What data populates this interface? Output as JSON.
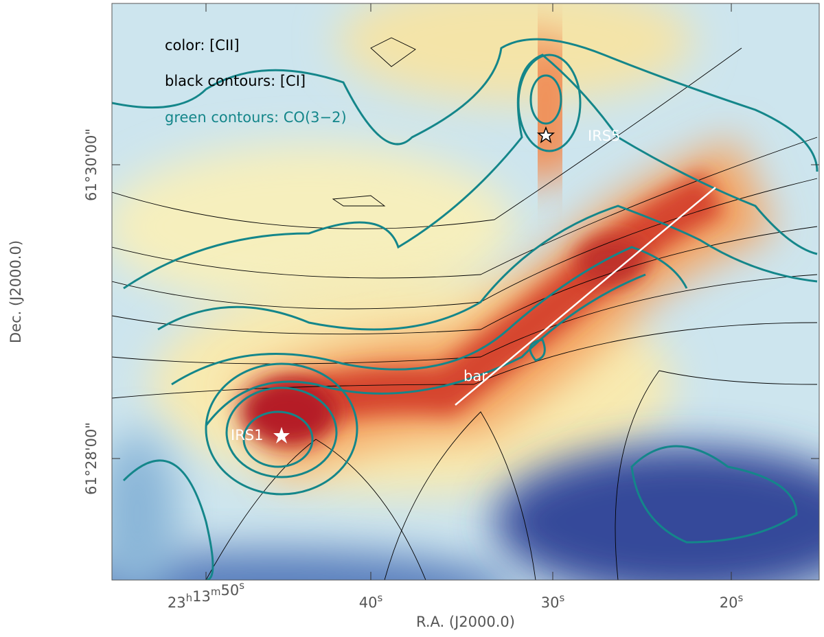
{
  "legend": {
    "color": "color: [CII]",
    "black_contours": "black contours: [CI]",
    "green_contours": "green contours: CO(3−2)"
  },
  "annotations": {
    "irs5": "IRS5",
    "bar": "bar",
    "irs1": "IRS1"
  },
  "x_axis": {
    "label": "R.A. (J2000.0)",
    "ticks": [
      [
        {
          "text": "23",
          "sup": "h"
        },
        {
          "text": "13",
          "sup": "m"
        },
        {
          "text": "50",
          "sup": "s"
        }
      ],
      [
        {
          "text": "40",
          "sup": "s"
        }
      ],
      [
        {
          "text": "30",
          "sup": "s"
        }
      ],
      [
        {
          "text": "20",
          "sup": "s"
        }
      ]
    ]
  },
  "y_axis": {
    "label": "Dec. (J2000.0)",
    "ticks": [
      "61°30'00\"",
      "61°28'00\""
    ]
  }
}
